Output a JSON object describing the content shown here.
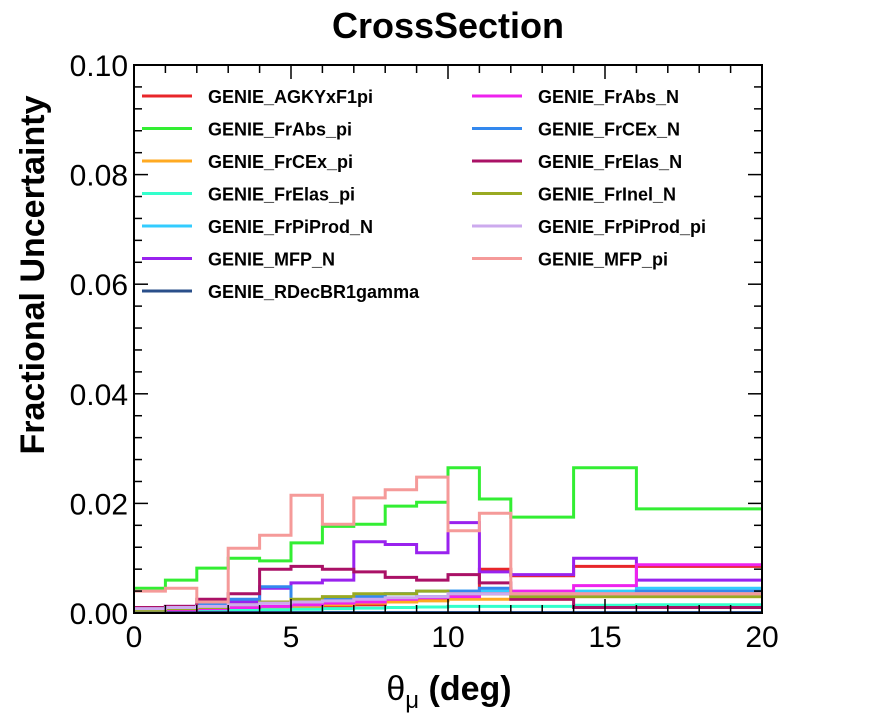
{
  "chart_data": {
    "type": "line",
    "step": true,
    "title": "CrossSection",
    "xlabel": "θμ (deg)",
    "xlabel_parts": {
      "symbol": "θ",
      "subscript": "μ",
      "rest": " (deg)"
    },
    "ylabel": "Fractional Uncertainty",
    "xlim": [
      0,
      20
    ],
    "ylim": [
      0,
      0.1
    ],
    "x_ticks": [
      "0",
      "5",
      "10",
      "15",
      "20"
    ],
    "y_ticks": [
      "0.00",
      "0.02",
      "0.04",
      "0.06",
      "0.08",
      "0.10"
    ],
    "grid": false,
    "legend_placement": "top-left",
    "bin_edges": [
      0,
      1,
      2,
      3,
      4,
      5,
      6,
      7,
      8,
      9,
      10,
      11,
      12,
      14,
      16,
      20
    ],
    "series": [
      {
        "name": "GENIE_AGKYxF1pi",
        "color": "#e8262a",
        "values": [
          0.001,
          0.001,
          0.001,
          0.001,
          0.001,
          0.001,
          0.0012,
          0.0015,
          0.002,
          0.0025,
          0.003,
          0.008,
          0.0068,
          0.0085,
          0.0085
        ]
      },
      {
        "name": "GENIE_FrAbs_pi",
        "color": "#33ee33",
        "values": [
          0.0045,
          0.006,
          0.0082,
          0.01,
          0.0095,
          0.0128,
          0.0158,
          0.0162,
          0.0195,
          0.0202,
          0.0265,
          0.0208,
          0.0175,
          0.0265,
          0.019
        ]
      },
      {
        "name": "GENIE_FrCEx_pi",
        "color": "#ffaa22",
        "values": [
          0.0004,
          0.0005,
          0.0006,
          0.0008,
          0.001,
          0.0012,
          0.0015,
          0.0018,
          0.002,
          0.0022,
          0.0025,
          0.0025,
          0.0025,
          0.003,
          0.003
        ]
      },
      {
        "name": "GENIE_FrElas_pi",
        "color": "#33ffcc",
        "values": [
          0.0003,
          0.0004,
          0.0004,
          0.0005,
          0.0006,
          0.0007,
          0.0008,
          0.0009,
          0.001,
          0.0011,
          0.0012,
          0.0012,
          0.0012,
          0.0014,
          0.0015
        ]
      },
      {
        "name": "GENIE_FrPiProd_N",
        "color": "#33ccff",
        "values": [
          0.0005,
          0.0006,
          0.0008,
          0.001,
          0.0012,
          0.0015,
          0.0025,
          0.003,
          0.0035,
          0.004,
          0.004,
          0.004,
          0.0035,
          0.004,
          0.0045
        ]
      },
      {
        "name": "GENIE_MFP_N",
        "color": "#9922ee",
        "values": [
          0.001,
          0.0012,
          0.0015,
          0.002,
          0.0045,
          0.0055,
          0.006,
          0.013,
          0.0125,
          0.011,
          0.0165,
          0.0075,
          0.007,
          0.01,
          0.006
        ]
      },
      {
        "name": "GENIE_RDecBR1gamma",
        "color": "#2a4f8a",
        "values": [
          0.0001,
          0.0001,
          0.0001,
          0.0001,
          0.0001,
          0.0001,
          0.0001,
          0.0001,
          0.0001,
          0.0001,
          0.0001,
          0.0001,
          0.0001,
          0.0001,
          0.0001
        ]
      },
      {
        "name": "GENIE_FrAbs_N",
        "color": "#ee22ee",
        "values": [
          0.0005,
          0.0006,
          0.0008,
          0.001,
          0.0012,
          0.0015,
          0.0018,
          0.002,
          0.0025,
          0.0028,
          0.003,
          0.0035,
          0.004,
          0.005,
          0.0088
        ]
      },
      {
        "name": "GENIE_FrCEx_N",
        "color": "#3388ee",
        "values": [
          0.0005,
          0.001,
          0.0015,
          0.0025,
          0.0048,
          0.002,
          0.0025,
          0.003,
          0.0035,
          0.003,
          0.004,
          0.0045,
          0.0035,
          0.0035,
          0.004
        ]
      },
      {
        "name": "GENIE_FrElas_N",
        "color": "#aa1166",
        "values": [
          0.001,
          0.0012,
          0.0025,
          0.0035,
          0.008,
          0.0085,
          0.008,
          0.0075,
          0.0065,
          0.006,
          0.007,
          0.0055,
          0.0025,
          0.001,
          0.001
        ]
      },
      {
        "name": "GENIE_FrInel_N",
        "color": "#99aa22",
        "values": [
          0.0005,
          0.0008,
          0.001,
          0.0015,
          0.002,
          0.0025,
          0.003,
          0.0035,
          0.0035,
          0.004,
          0.0035,
          0.0035,
          0.003,
          0.003,
          0.003
        ]
      },
      {
        "name": "GENIE_FrPiProd_pi",
        "color": "#ccaaee",
        "values": [
          0.0008,
          0.001,
          0.0012,
          0.0015,
          0.0018,
          0.002,
          0.0022,
          0.0025,
          0.0028,
          0.003,
          0.0035,
          0.0035,
          0.0035,
          0.0035,
          0.0035
        ]
      },
      {
        "name": "GENIE_MFP_pi",
        "color": "#f59a99",
        "values": [
          0.004,
          0.0045,
          0.002,
          0.0118,
          0.0142,
          0.0215,
          0.0162,
          0.021,
          0.0225,
          0.0248,
          0.015,
          0.0182,
          0.0035,
          0.0035,
          0.0035
        ]
      }
    ]
  }
}
